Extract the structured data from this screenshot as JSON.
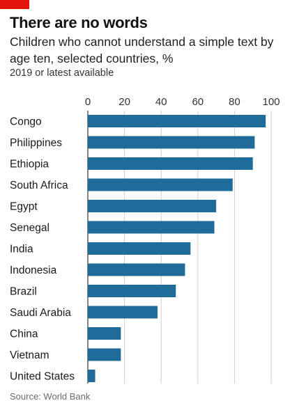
{
  "header": {
    "title": "There are no words",
    "subtitle": "Children who cannot understand a simple text by age ten, selected countries, %",
    "note": "2019 or latest available"
  },
  "footer": {
    "source": "Source: World Bank"
  },
  "colors": {
    "bar": "#1f6b9a",
    "accent": "#e3120b",
    "grid": "#cfcfcf"
  },
  "chart_data": {
    "type": "bar",
    "orientation": "horizontal",
    "title": "There are no words",
    "xlim": [
      0,
      100
    ],
    "x_ticks": [
      "0",
      "20",
      "40",
      "60",
      "80",
      "100"
    ],
    "tick_values": [
      0,
      20,
      40,
      60,
      80,
      100
    ],
    "grid": true,
    "categories": [
      "Congo",
      "Philippines",
      "Ethiopia",
      "South Africa",
      "Egypt",
      "Senegal",
      "India",
      "Indonesia",
      "Brazil",
      "Saudi Arabia",
      "China",
      "Vietnam",
      "United States"
    ],
    "values": [
      97,
      91,
      90,
      79,
      70,
      69,
      56,
      53,
      48,
      38,
      18,
      18,
      4
    ]
  }
}
